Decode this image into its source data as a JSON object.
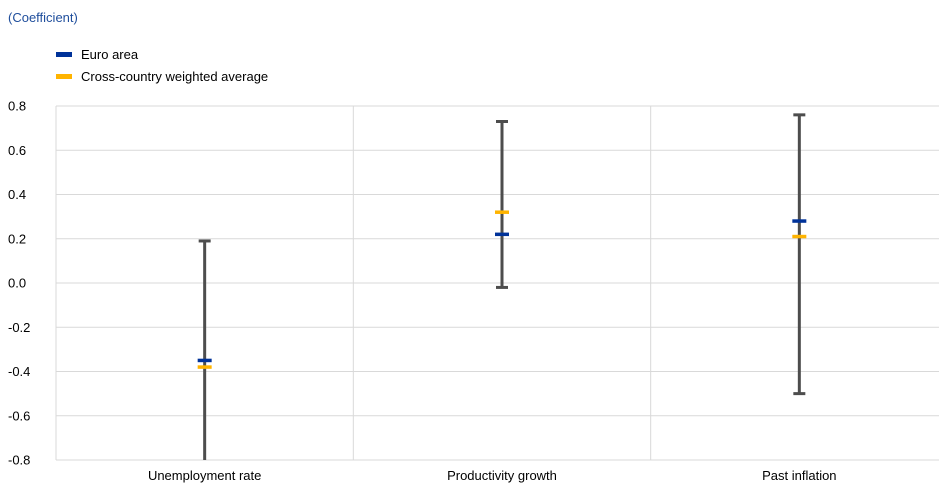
{
  "chart_data": {
    "type": "error-bar",
    "unit_label": "(Coefficient)",
    "categories": [
      "Unemployment rate",
      "Productivity growth",
      "Past inflation"
    ],
    "ranges": [
      {
        "low": -0.8,
        "high": 0.19
      },
      {
        "low": -0.02,
        "high": 0.73
      },
      {
        "low": -0.5,
        "high": 0.76
      }
    ],
    "series": [
      {
        "name": "Euro area",
        "color": "#003299",
        "values": [
          -0.35,
          0.22,
          0.28
        ]
      },
      {
        "name": "Cross-country weighted average",
        "color": "#ffb400",
        "values": [
          -0.38,
          0.32,
          0.21
        ]
      }
    ],
    "ylim": [
      -0.8,
      0.8
    ],
    "yticks": [
      "0.8",
      "0.6",
      "0.4",
      "0.2",
      "0.0",
      "-0.2",
      "-0.4",
      "-0.6",
      "-0.8"
    ],
    "ytick_values": [
      0.8,
      0.6,
      0.4,
      0.2,
      0.0,
      -0.2,
      -0.4,
      -0.6,
      -0.8
    ],
    "range_color": "#4d4d4d",
    "grid": true,
    "legend_position": "top-left"
  }
}
